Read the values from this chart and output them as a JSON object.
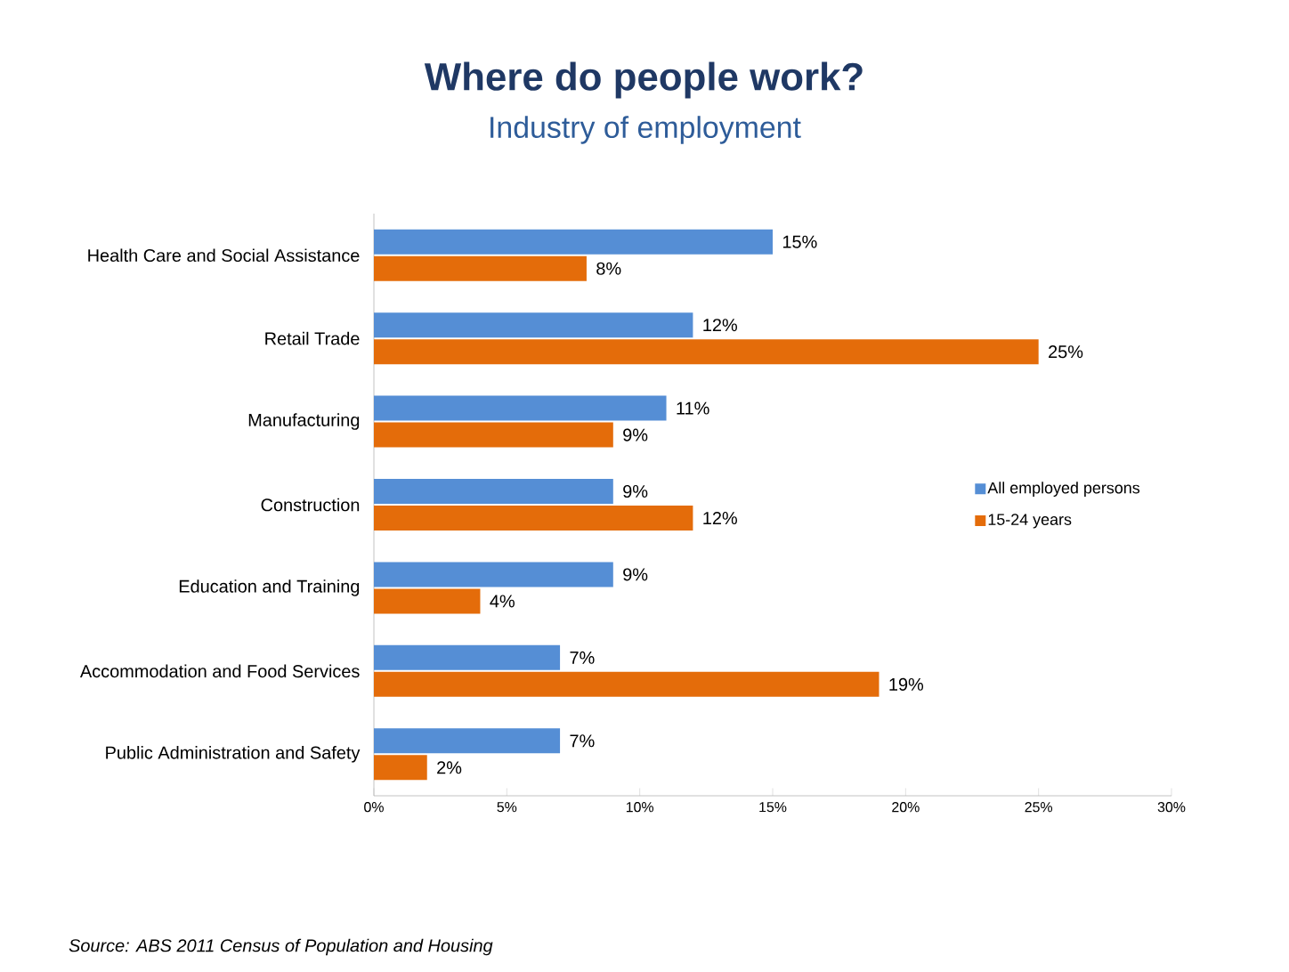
{
  "chart_data": {
    "type": "bar",
    "orientation": "horizontal",
    "title": "Where do people work?",
    "subtitle": "Industry of employment",
    "categories": [
      "Health Care and Social Assistance",
      "Retail Trade",
      "Manufacturing",
      "Construction",
      "Education and Training",
      "Accommodation and Food Services",
      "Public Administration and Safety"
    ],
    "series": [
      {
        "name": "All employed persons",
        "color": "#558ed5",
        "values": [
          15,
          12,
          11,
          9,
          9,
          7,
          7
        ],
        "value_labels": [
          "15%",
          "12%",
          "11%",
          "9%",
          "9%",
          "7%",
          "7%"
        ]
      },
      {
        "name": "15-24 years",
        "color": "#e46c0a",
        "values": [
          8,
          25,
          9,
          12,
          4,
          19,
          2
        ],
        "value_labels": [
          "8%",
          "25%",
          "9%",
          "12%",
          "4%",
          "19%",
          "2%"
        ]
      }
    ],
    "xlim": [
      0,
      30
    ],
    "xticks": [
      {
        "value": 0,
        "label": "0%"
      },
      {
        "value": 5,
        "label": "5%"
      },
      {
        "value": 10,
        "label": "10%"
      },
      {
        "value": 15,
        "label": "15%"
      },
      {
        "value": 20,
        "label": "20%"
      },
      {
        "value": 25,
        "label": "25%"
      },
      {
        "value": 30,
        "label": "30%"
      }
    ],
    "legend": "right",
    "annotations": [
      "Source: ABS 2011 Census of Population and Housing"
    ]
  }
}
